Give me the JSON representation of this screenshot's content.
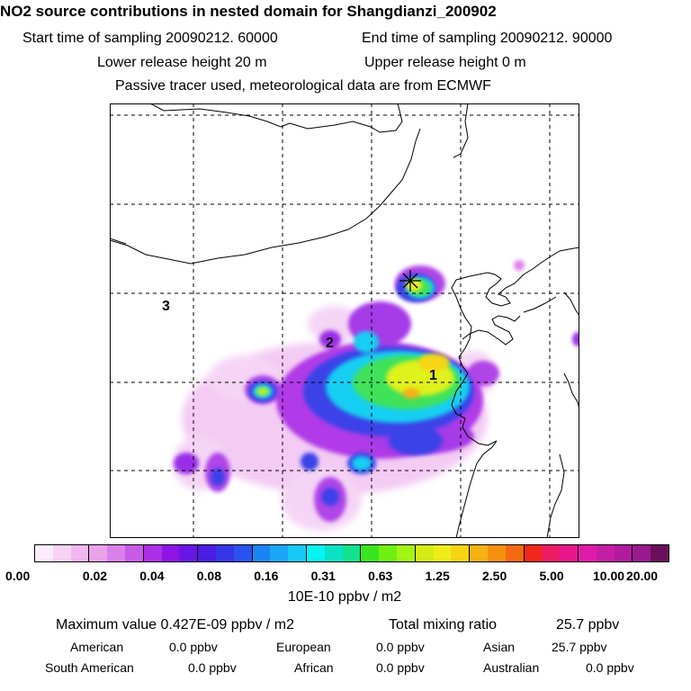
{
  "title": "NO2 source contributions in nested domain for Shangdianzi_200902",
  "header": {
    "start": "Start time of sampling 20090212. 60000",
    "end": "End time of sampling 20090212. 90000",
    "lower": "Lower release height   20 m",
    "upper": "Upper release height    0 m",
    "passive": "Passive tracer used, meteorological data are from ECMWF"
  },
  "map": {
    "region_labels": [
      "1",
      "2",
      "3"
    ],
    "receptor_marker": "asterisk"
  },
  "colorbar": {
    "colors": [
      "#fbecfb",
      "#f6d2f6",
      "#f0b7f0",
      "#eaa2ea",
      "#d981e8",
      "#c85be9",
      "#ad2fe8",
      "#8f14e6",
      "#6a16e6",
      "#4b1ce4",
      "#3535e8",
      "#2a52f0",
      "#1a84f3",
      "#1aa6f6",
      "#17c9f7",
      "#05f5f0",
      "#08e3c6",
      "#12e28e",
      "#39e51e",
      "#72ef12",
      "#a2f614",
      "#d5ec14",
      "#f0ec1a",
      "#f6d414",
      "#f6b114",
      "#f5900f",
      "#f46a10",
      "#f3281c",
      "#ee1d63",
      "#e9178b",
      "#e11ba9",
      "#c61da5",
      "#b31aa0",
      "#9a1a8f",
      "#6a0f5c"
    ],
    "ticks": [
      "0.00",
      "0.02",
      "0.04",
      "0.08",
      "0.16",
      "0.31",
      "0.63",
      "1.25",
      "2.50",
      "5.00",
      "10.00",
      "20.00"
    ],
    "unit": "10E-10 ppbv / m2"
  },
  "summary": {
    "max_label": "Maximum value  0.427E-09 ppbv / m2",
    "total_label": "Total mixing ratio",
    "total_value": "25.7 ppbv",
    "american_label": "American",
    "american_value": "0.0 ppbv",
    "european_label": "European",
    "european_value": "0.0 ppbv",
    "asian_label": "Asian",
    "asian_value": "25.7 ppbv",
    "south_american_label": "South American",
    "south_american_value": "0.0 ppbv",
    "african_label": "African",
    "african_value": "0.0 ppbv",
    "australian_label": "Australian",
    "australian_value": "0.0 ppbv"
  }
}
